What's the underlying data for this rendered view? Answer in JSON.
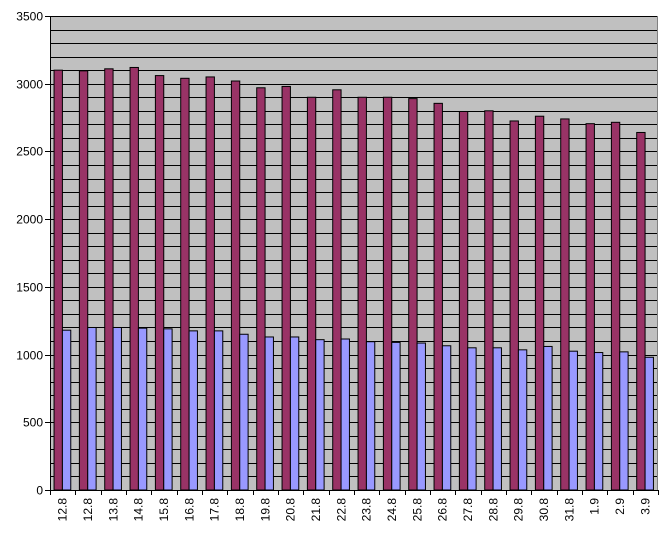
{
  "chart_data": {
    "type": "bar",
    "title": "",
    "xlabel": "",
    "ylabel": "",
    "categories": [
      "12.8",
      "12.8",
      "13.8",
      "14.8",
      "15.8",
      "16.8",
      "17.8",
      "18.8",
      "19.8",
      "20.8",
      "21.8",
      "22.8",
      "23.8",
      "24.8",
      "25.8",
      "26.8",
      "27.8",
      "28.8",
      "29.8",
      "30.8",
      "31.8",
      "1.9",
      "2.9",
      "3.9"
    ],
    "series": [
      {
        "color": "#993366",
        "values": [
          3100,
          3095,
          3110,
          3120,
          3060,
          3040,
          3050,
          3020,
          2970,
          2980,
          2900,
          2955,
          2900,
          2900,
          2890,
          2855,
          2795,
          2800,
          2725,
          2760,
          2740,
          2705,
          2715,
          2640
        ]
      },
      {
        "color": "#9999ff",
        "values": [
          1180,
          1200,
          1200,
          1195,
          1190,
          1175,
          1175,
          1150,
          1130,
          1130,
          1110,
          1115,
          1095,
          1090,
          1085,
          1065,
          1050,
          1050,
          1035,
          1060,
          1025,
          1015,
          1020,
          980
        ]
      }
    ],
    "ylim": [
      0,
      3500
    ],
    "yticks": [
      0,
      500,
      1000,
      1500,
      2000,
      2500,
      3000,
      3500
    ],
    "ytick_labels": [
      "0",
      "500",
      "1000",
      "1500",
      "2000",
      "2500",
      "3000",
      "3500"
    ],
    "grid": true,
    "plot_background": "#c0c0c0",
    "legend": "none"
  }
}
